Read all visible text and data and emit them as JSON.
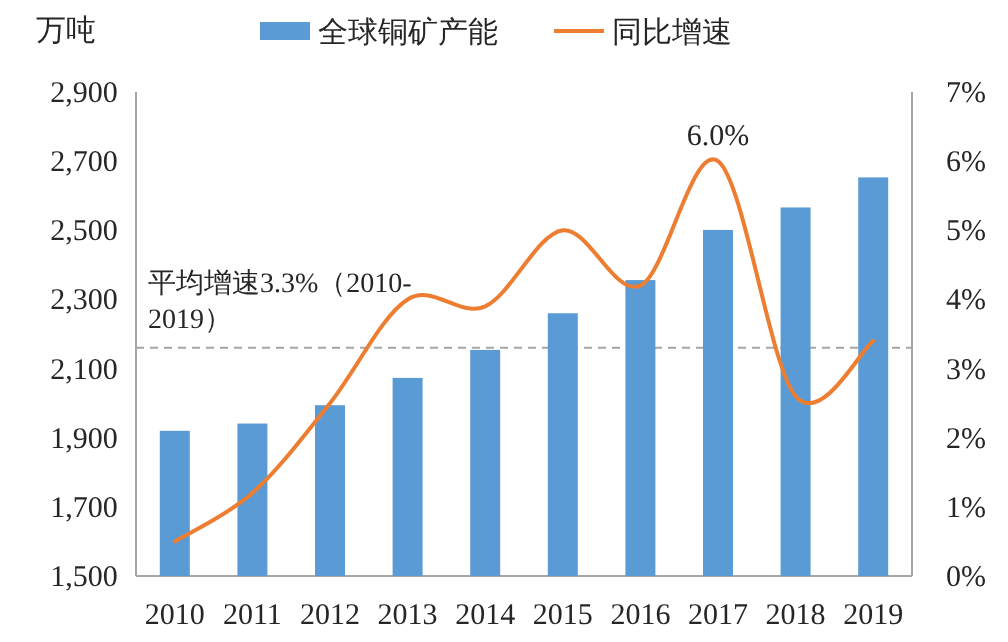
{
  "chart_data": {
    "type": "bar",
    "ylabel": "万吨",
    "categories": [
      "2010",
      "2011",
      "2012",
      "2013",
      "2014",
      "2015",
      "2016",
      "2017",
      "2018",
      "2019"
    ],
    "series": [
      {
        "name": "全球铜矿产能",
        "color": "#5b9bd5",
        "values": [
          1920,
          1941,
          1994,
          2073,
          2154,
          2260,
          2356,
          2501,
          2566,
          2653
        ]
      },
      {
        "name": "同比增速",
        "type": "line",
        "axis": "y2",
        "color": "#ed7d31",
        "values": [
          0.5,
          1.2,
          2.5,
          4.0,
          3.9,
          5.0,
          4.2,
          6.0,
          2.6,
          3.4
        ],
        "value_labels": [
          null,
          null,
          null,
          null,
          null,
          null,
          null,
          "6.0%",
          null,
          null
        ]
      }
    ],
    "ylim": [
      1500,
      2900
    ],
    "yticks": [
      {
        "value": 1500,
        "label": "1,500"
      },
      {
        "value": 1700,
        "label": "1,700"
      },
      {
        "value": 1900,
        "label": "1,900"
      },
      {
        "value": 2100,
        "label": "2,100"
      },
      {
        "value": 2300,
        "label": "2,300"
      },
      {
        "value": 2500,
        "label": "2,500"
      },
      {
        "value": 2700,
        "label": "2,700"
      },
      {
        "value": 2900,
        "label": "2,900"
      }
    ],
    "y2lim": [
      0,
      7
    ],
    "y2ticks": [
      {
        "value": 0,
        "label": "0%"
      },
      {
        "value": 1,
        "label": "1%"
      },
      {
        "value": 2,
        "label": "2%"
      },
      {
        "value": 3,
        "label": "3%"
      },
      {
        "value": 4,
        "label": "4%"
      },
      {
        "value": 5,
        "label": "5%"
      },
      {
        "value": 6,
        "label": "6%"
      },
      {
        "value": 7,
        "label": "7%"
      }
    ],
    "ref_lines": [
      {
        "axis": "y2",
        "value": 3.3,
        "label": "平均增速3.3%（2010-2019）",
        "color": "#a6a6a6",
        "line_style": "dashed"
      }
    ],
    "legend": "top",
    "grid": false
  }
}
